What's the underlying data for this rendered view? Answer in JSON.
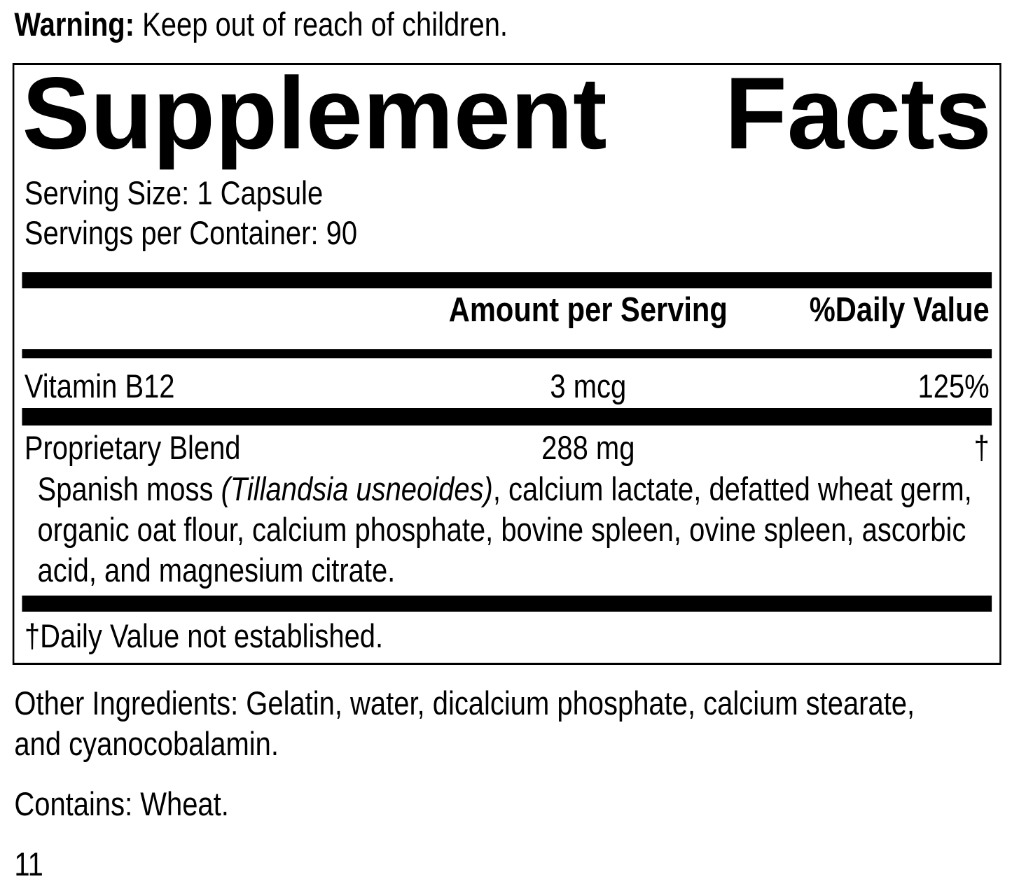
{
  "warning": {
    "label": "Warning:",
    "text": " Keep out of reach of children."
  },
  "panel": {
    "title": {
      "word1": "Supplement",
      "word2": "Facts"
    },
    "serving_size": "Serving Size: 1 Capsule",
    "servings_per_container": "Servings per Container: 90",
    "columns": {
      "amount": "Amount per Serving",
      "daily_value": "%Daily Value"
    },
    "rows": [
      {
        "name": "Vitamin B12",
        "amount": "3 mcg",
        "dv": "125%"
      },
      {
        "name": "Proprietary Blend",
        "amount": "288 mg",
        "dv": "†"
      }
    ],
    "blend": {
      "line1_pre": "Spanish moss ",
      "line1_italic": "(Tillandsia usneoides)",
      "line1_post": ", calcium lactate, defatted wheat germ,",
      "line2": "organic oat flour, calcium phosphate, bovine spleen, ovine spleen, ascorbic",
      "line3": "acid, and magnesium citrate."
    },
    "footnote": "†Daily Value not established."
  },
  "other_ingredients": {
    "line1": "Other Ingredients: Gelatin, water, dicalcium phosphate, calcium stearate,",
    "line2": "and cyanocobalamin."
  },
  "contains": "Contains: Wheat.",
  "page_number": "11",
  "colors": {
    "ink": "#000000",
    "background": "#ffffff"
  }
}
